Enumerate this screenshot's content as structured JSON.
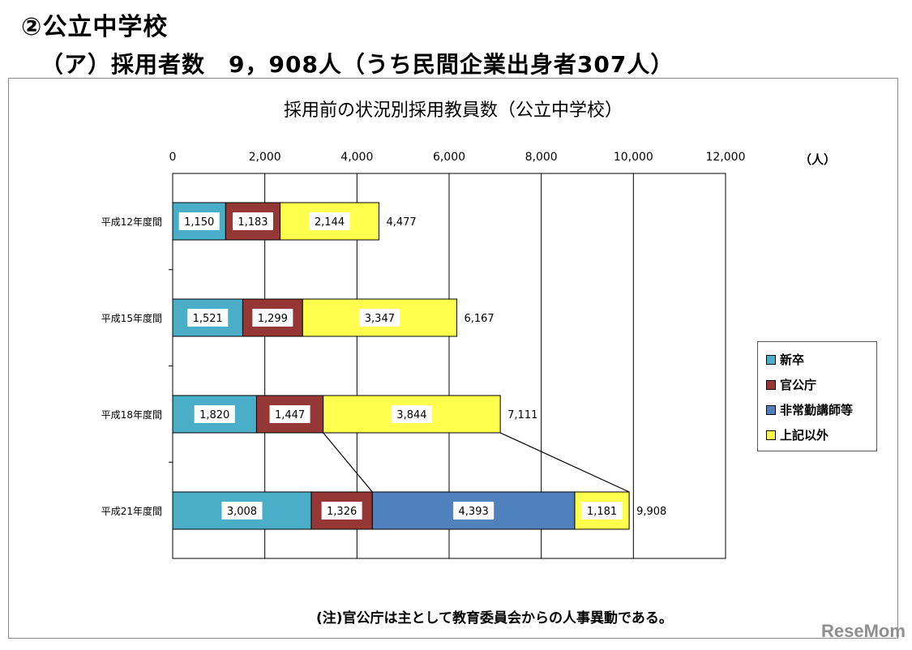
{
  "header": {
    "section_title": "②公立中学校",
    "subtitle": "（ア）採用者数　9，908人（うち民間企業出身者307人）"
  },
  "chart_data": {
    "type": "bar",
    "orientation": "horizontal",
    "stacked": true,
    "title": "採用前の状況別採用教員数（公立中学校）",
    "unit": "（人）",
    "xlim": [
      0,
      12000
    ],
    "ticks": [
      "0",
      "2,000",
      "4,000",
      "6,000",
      "8,000",
      "10,000",
      "12,000"
    ],
    "tick_values": [
      0,
      2000,
      4000,
      6000,
      8000,
      10000,
      12000
    ],
    "grid": true,
    "legend_position": "right",
    "categories": [
      "平成12年度間",
      "平成15年度間",
      "平成18年度間",
      "平成21年度間"
    ],
    "series": [
      {
        "name": "新卒",
        "color": "#4aaec9",
        "values": [
          1150,
          1521,
          1820,
          3008
        ],
        "labels": [
          "1,150",
          "1,521",
          "1,820",
          "3,008"
        ]
      },
      {
        "name": "官公庁",
        "color": "#953735",
        "values": [
          1183,
          1299,
          1447,
          1326
        ],
        "labels": [
          "1,183",
          "1,299",
          "1,447",
          "1,326"
        ]
      },
      {
        "name": "非常勤講師等",
        "color": "#4f81bd",
        "values": [
          0,
          0,
          0,
          4393
        ],
        "labels": [
          "",
          "",
          "",
          "4,393"
        ]
      },
      {
        "name": "上記以外",
        "color": "#ffff4d",
        "values": [
          2144,
          3347,
          3844,
          1181
        ],
        "labels": [
          "2,144",
          "3,347",
          "3,844",
          "1,181"
        ]
      }
    ],
    "totals": [
      4477,
      6167,
      7111,
      9908
    ],
    "total_labels": [
      "4,477",
      "6,167",
      "7,111",
      "9,908"
    ]
  },
  "note": "(注)官公庁は主として教育委員会からの人事異動である。",
  "watermark": "ReseMom"
}
